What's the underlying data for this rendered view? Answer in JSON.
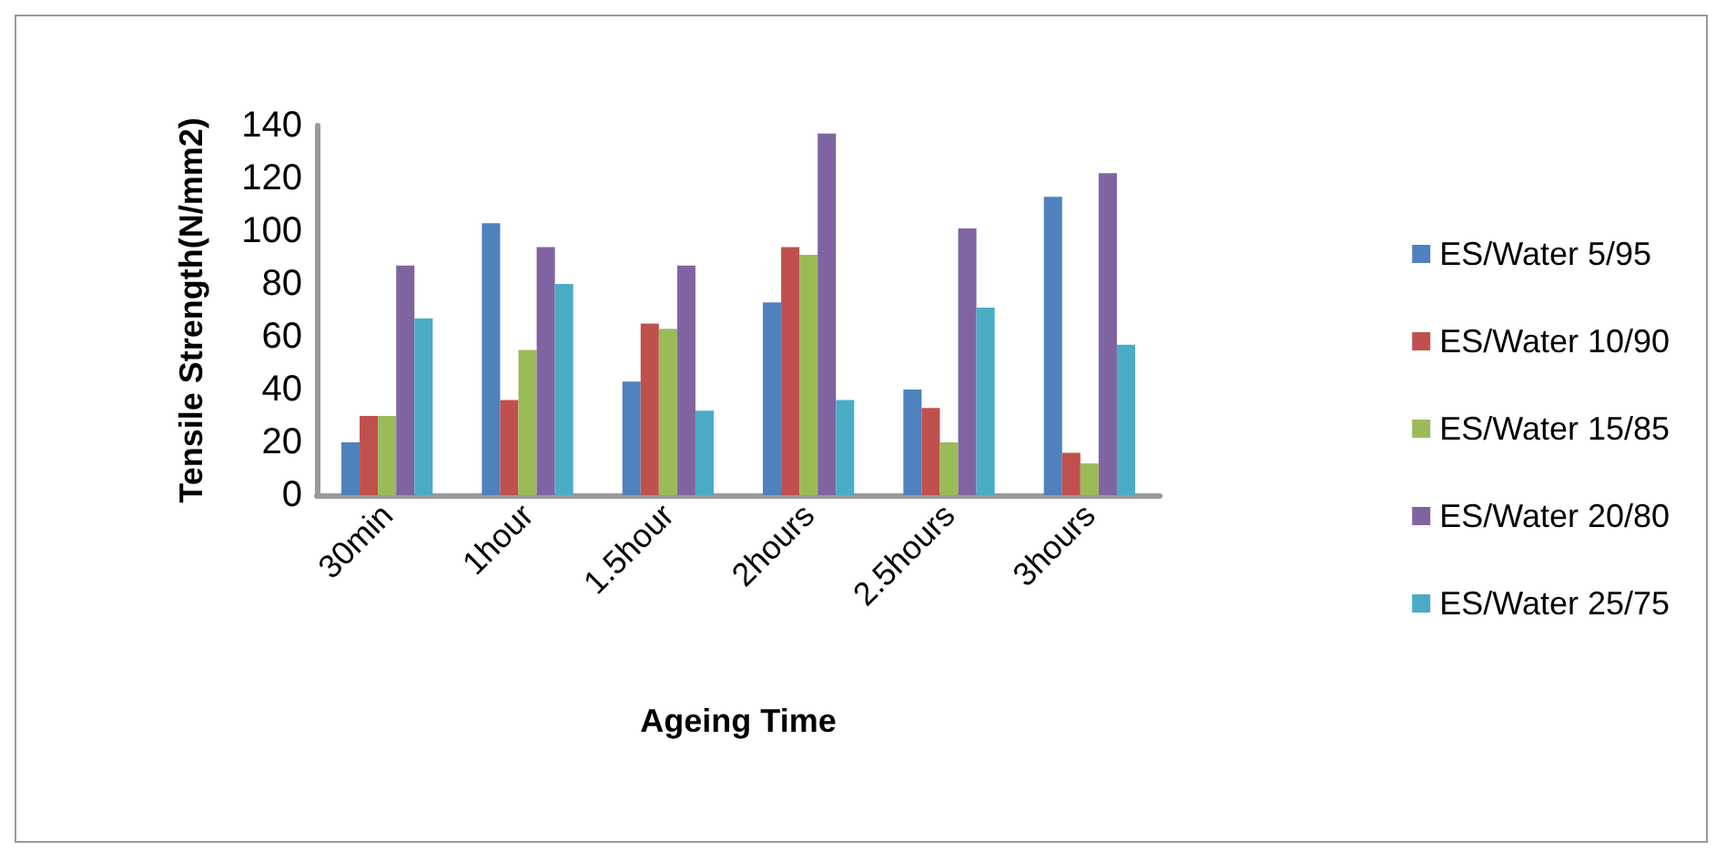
{
  "chart_data": {
    "type": "bar",
    "xlabel": "Ageing Time",
    "ylabel": "Tensile Strength(N/mm2)",
    "categories": [
      "30min",
      "1hour",
      "1.5hour",
      "2hours",
      "2.5hours",
      "3hours"
    ],
    "series": [
      {
        "name": "ES/Water 5/95",
        "color": "#4f81bd",
        "values": [
          20,
          103,
          43,
          73,
          40,
          113
        ]
      },
      {
        "name": "ES/Water 10/90",
        "color": "#c0504d",
        "values": [
          30,
          36,
          65,
          94,
          33,
          16
        ]
      },
      {
        "name": "ES/Water 15/85",
        "color": "#9bbb59",
        "values": [
          30,
          55,
          63,
          91,
          20,
          12
        ]
      },
      {
        "name": "ES/Water 20/80",
        "color": "#8064a2",
        "values": [
          87,
          94,
          87,
          137,
          101,
          122
        ]
      },
      {
        "name": "ES/Water 25/75",
        "color": "#4bacc6",
        "values": [
          67,
          80,
          32,
          36,
          71,
          57
        ]
      }
    ],
    "ylim": [
      0,
      140
    ],
    "yticks": [
      0,
      20,
      40,
      60,
      80,
      100,
      120,
      140
    ],
    "grid": false,
    "legend": "right"
  }
}
